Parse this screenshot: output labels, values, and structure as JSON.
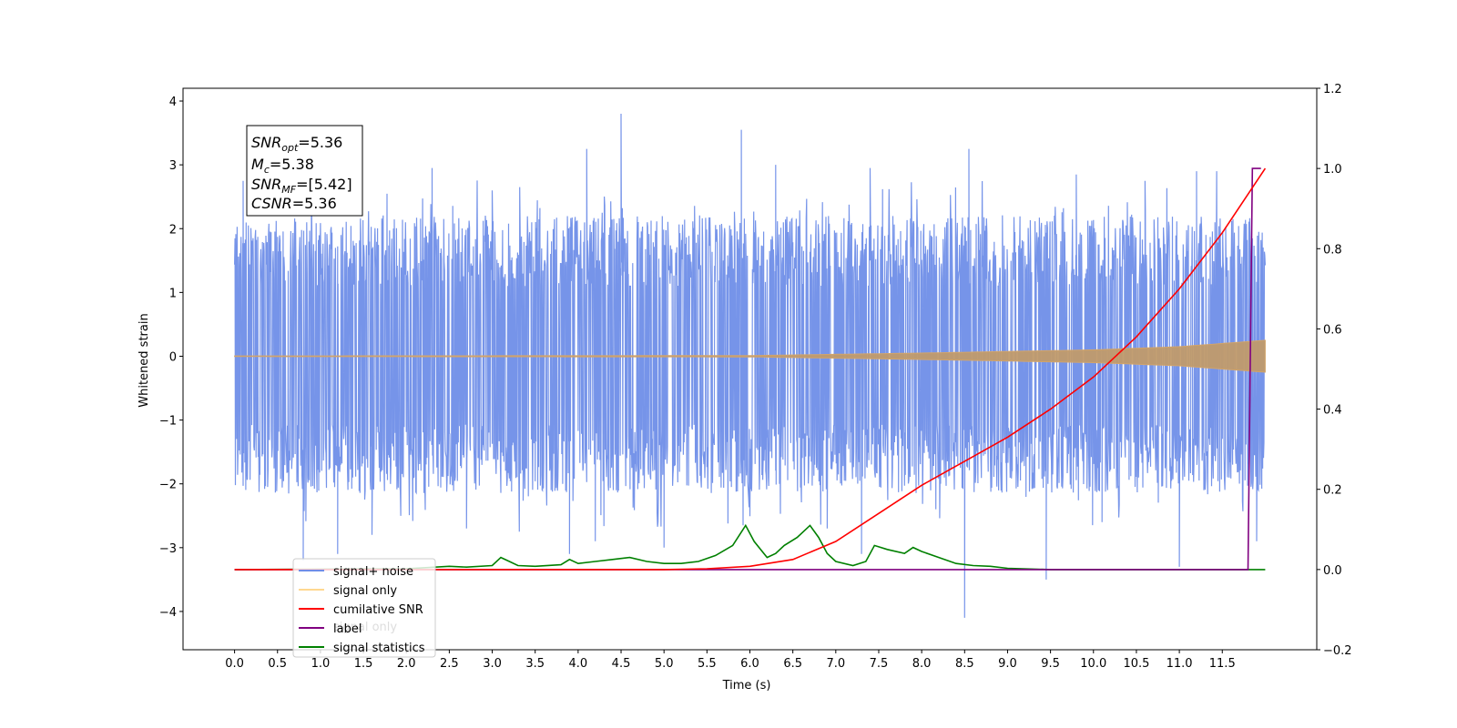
{
  "chart_data": {
    "type": "line",
    "title": "",
    "xlabel": "Time (s)",
    "ylabel": "Whitened strain",
    "y2label": "",
    "xlim": [
      -0.6,
      12.6
    ],
    "ylim": [
      -4.6,
      4.2
    ],
    "y2lim": [
      -0.2,
      1.2
    ],
    "x_ticks": [
      "0.0",
      "0.5",
      "1.0",
      "1.5",
      "2.0",
      "2.5",
      "3.0",
      "3.5",
      "4.0",
      "4.5",
      "5.0",
      "5.5",
      "6.0",
      "6.5",
      "7.0",
      "7.5",
      "8.0",
      "8.5",
      "9.0",
      "9.5",
      "10.0",
      "10.5",
      "11.0",
      "11.5"
    ],
    "y_ticks": [
      "4",
      "3",
      "2",
      "1",
      "0",
      "−1",
      "−2",
      "−3",
      "−4"
    ],
    "y2_ticks": [
      "1.2",
      "1.0",
      "0.8",
      "0.6",
      "0.4",
      "0.2",
      "0.0",
      "−0.2"
    ],
    "grid": false,
    "legend_position": "lower-left",
    "annotation": {
      "snr_opt": {
        "sym": "SNR",
        "sub": "opt",
        "value": "=5.36"
      },
      "mc": {
        "sym": "M",
        "sub": "c",
        "value": "=5.38"
      },
      "snr_mf": {
        "sym": "SNR",
        "sub": "MF",
        "value": "=[5.42]"
      },
      "csnr": {
        "sym": "CSNR",
        "value": "=5.36"
      }
    },
    "series": [
      {
        "name": "signal+ noise",
        "color": "#6f8ee8",
        "axis": "left",
        "x_range": [
          0.0,
          12.0
        ],
        "envelope_upper": 2.0,
        "envelope_lower": -1.95,
        "peaks": [
          {
            "x": 4.5,
            "y": 3.8
          },
          {
            "x": 5.9,
            "y": 3.55
          },
          {
            "x": 8.55,
            "y": 3.25
          },
          {
            "x": 4.1,
            "y": 3.25
          },
          {
            "x": 2.3,
            "y": 2.95
          },
          {
            "x": 0.1,
            "y": 2.75
          },
          {
            "x": 11.2,
            "y": 2.9
          },
          {
            "x": 7.4,
            "y": 2.95
          },
          {
            "x": 9.8,
            "y": 2.85
          },
          {
            "x": 6.3,
            "y": 3.0
          },
          {
            "x": 3.0,
            "y": 2.6
          },
          {
            "x": 10.6,
            "y": 2.75
          },
          {
            "x": 8.5,
            "y": -4.1
          },
          {
            "x": 9.45,
            "y": -3.5
          },
          {
            "x": 11.0,
            "y": -3.3
          },
          {
            "x": 1.2,
            "y": -3.1
          },
          {
            "x": 0.8,
            "y": -3.2
          },
          {
            "x": 5.0,
            "y": -3.0
          },
          {
            "x": 2.7,
            "y": -2.7
          },
          {
            "x": 7.3,
            "y": -3.1
          },
          {
            "x": 6.9,
            "y": -2.7
          },
          {
            "x": 4.2,
            "y": -2.9
          },
          {
            "x": 1.6,
            "y": -2.8
          },
          {
            "x": 11.9,
            "y": -2.9
          },
          {
            "x": 10.1,
            "y": -2.6
          },
          {
            "x": 3.9,
            "y": -3.1
          }
        ]
      },
      {
        "name": "signal only",
        "color": "#ffa500",
        "axis": "left",
        "x_range": [
          0.0,
          12.0
        ],
        "amplitude": {
          "x": [
            0.0,
            6.0,
            8.0,
            10.0,
            11.0,
            12.0
          ],
          "y": [
            0.005,
            0.01,
            0.05,
            0.1,
            0.15,
            0.25
          ]
        }
      },
      {
        "name": "cumilative SNR",
        "color": "#ff0000",
        "axis": "right",
        "x": [
          0.0,
          5.0,
          5.5,
          6.0,
          6.5,
          7.0,
          7.5,
          8.0,
          8.5,
          9.0,
          9.5,
          10.0,
          10.5,
          11.0,
          11.5,
          12.0
        ],
        "y": [
          0.0,
          0.0,
          0.002,
          0.008,
          0.025,
          0.07,
          0.14,
          0.21,
          0.27,
          0.33,
          0.4,
          0.48,
          0.58,
          0.7,
          0.84,
          1.0
        ]
      },
      {
        "name": "label",
        "color": "#800080",
        "axis": "right",
        "x": [
          0.0,
          11.8,
          11.85,
          11.95
        ],
        "y": [
          0.0,
          0.0,
          1.0,
          1.0
        ]
      },
      {
        "name": "signal statistics",
        "color": "#008000",
        "axis": "right",
        "x": [
          0.0,
          2.0,
          2.5,
          2.7,
          3.0,
          3.1,
          3.2,
          3.3,
          3.5,
          3.8,
          3.9,
          4.0,
          4.2,
          4.4,
          4.6,
          4.8,
          5.0,
          5.2,
          5.4,
          5.6,
          5.8,
          5.95,
          6.05,
          6.2,
          6.3,
          6.4,
          6.55,
          6.7,
          6.8,
          6.9,
          7.0,
          7.2,
          7.35,
          7.45,
          7.6,
          7.8,
          7.9,
          8.0,
          8.2,
          8.4,
          8.6,
          8.8,
          9.0,
          9.5,
          12.0
        ],
        "y": [
          0.0,
          0.002,
          0.008,
          0.006,
          0.01,
          0.03,
          0.02,
          0.01,
          0.008,
          0.012,
          0.025,
          0.015,
          0.02,
          0.025,
          0.03,
          0.02,
          0.015,
          0.015,
          0.02,
          0.035,
          0.06,
          0.11,
          0.07,
          0.03,
          0.04,
          0.06,
          0.08,
          0.11,
          0.08,
          0.04,
          0.02,
          0.01,
          0.02,
          0.06,
          0.05,
          0.04,
          0.055,
          0.045,
          0.03,
          0.015,
          0.01,
          0.008,
          0.003,
          0.0,
          0.0
        ]
      }
    ],
    "legend_items": [
      "signal+ noise",
      "signal only",
      "cumilative SNR",
      "label",
      "signal statistics"
    ],
    "legend_ghost_text": "signal only"
  }
}
